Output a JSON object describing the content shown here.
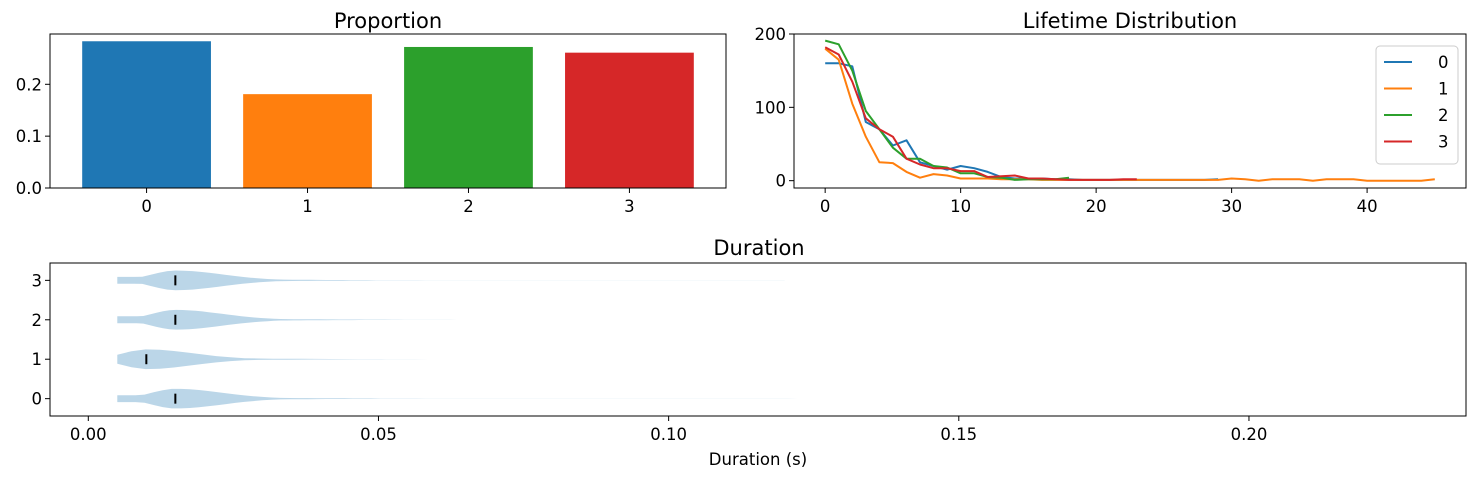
{
  "chart_data": [
    {
      "type": "bar",
      "title": "Proportion",
      "categories": [
        "0",
        "1",
        "2",
        "3"
      ],
      "values": [
        0.283,
        0.181,
        0.272,
        0.261
      ],
      "colors": [
        "#1f77b4",
        "#ff7f0e",
        "#2ca02c",
        "#d62728"
      ],
      "ylim": [
        0,
        0.297
      ],
      "yticks": [
        0.0,
        0.1,
        0.2
      ],
      "ytick_labels": [
        "0.0",
        "0.1",
        "0.2"
      ]
    },
    {
      "type": "line",
      "title": "Lifetime Distribution",
      "xlim": [
        -2.3,
        47.3
      ],
      "ylim": [
        -10,
        200
      ],
      "xticks": [
        0,
        10,
        20,
        30,
        40
      ],
      "xtick_labels": [
        "0",
        "10",
        "20",
        "30",
        "40"
      ],
      "yticks": [
        0,
        100,
        200
      ],
      "ytick_labels": [
        "0",
        "100",
        "200"
      ],
      "legend": "top-right",
      "series": [
        {
          "name": "0",
          "color": "#1f77b4",
          "x": [
            0,
            1,
            2,
            3,
            4,
            5,
            6,
            7,
            8,
            9,
            10,
            11,
            12,
            13,
            14,
            15,
            16,
            17,
            18,
            19,
            20,
            21,
            22,
            23,
            24,
            25,
            26,
            27,
            28,
            29
          ],
          "y": [
            160,
            160,
            156,
            80,
            70,
            48,
            55,
            25,
            20,
            15,
            20,
            17,
            12,
            5,
            3,
            3,
            3,
            2,
            2,
            1,
            1,
            1,
            1,
            1,
            1,
            1,
            1,
            1,
            1,
            2
          ]
        },
        {
          "name": "1",
          "color": "#ff7f0e",
          "x": [
            0,
            1,
            2,
            3,
            4,
            5,
            6,
            7,
            8,
            9,
            10,
            11,
            12,
            13,
            14,
            15,
            16,
            17,
            18,
            19,
            20,
            21,
            22,
            23,
            24,
            25,
            26,
            27,
            28,
            29,
            30,
            31,
            32,
            33,
            34,
            35,
            36,
            37,
            38,
            39,
            40,
            41,
            42,
            43,
            44,
            45
          ],
          "y": [
            180,
            165,
            105,
            60,
            25,
            24,
            12,
            4,
            9,
            7,
            3,
            3,
            3,
            2,
            2,
            2,
            1,
            1,
            1,
            1,
            1,
            1,
            1,
            1,
            1,
            1,
            1,
            1,
            1,
            1,
            3,
            2,
            0,
            2,
            2,
            2,
            0,
            2,
            2,
            2,
            0,
            0,
            0,
            0,
            0,
            2
          ]
        },
        {
          "name": "2",
          "color": "#2ca02c",
          "x": [
            0,
            1,
            2,
            3,
            4,
            5,
            6,
            7,
            8,
            9,
            10,
            11,
            12,
            13,
            14,
            15,
            16,
            17,
            18
          ],
          "y": [
            191,
            186,
            150,
            95,
            70,
            45,
            30,
            30,
            20,
            18,
            10,
            10,
            5,
            4,
            1,
            2,
            2,
            2,
            4
          ]
        },
        {
          "name": "3",
          "color": "#d62728",
          "x": [
            0,
            1,
            2,
            3,
            4,
            5,
            6,
            7,
            8,
            9,
            10,
            11,
            12,
            13,
            14,
            15,
            16,
            17,
            18,
            19,
            20,
            21,
            22,
            23
          ],
          "y": [
            182,
            172,
            135,
            85,
            70,
            60,
            30,
            22,
            17,
            17,
            13,
            13,
            5,
            6,
            7,
            3,
            3,
            2,
            1,
            1,
            1,
            1,
            2,
            2
          ]
        }
      ]
    },
    {
      "type": "violin",
      "title": "Duration",
      "xlabel": "Duration (s)",
      "categories": [
        "0",
        "1",
        "2",
        "3"
      ],
      "xlim": [
        -0.0066,
        0.2374
      ],
      "xticks": [
        0.0,
        0.05,
        0.1,
        0.15,
        0.2
      ],
      "xtick_labels": [
        "0.00",
        "0.05",
        "0.10",
        "0.15",
        "0.20"
      ],
      "yticks": [
        0,
        1,
        2,
        3
      ],
      "ytick_labels": [
        "0",
        "1",
        "2",
        "3"
      ],
      "fill_color": "#1f77b4",
      "medians": [
        0.015,
        0.01,
        0.015,
        0.015
      ],
      "min_values": [
        0.005,
        0.005,
        0.005,
        0.005
      ],
      "max_values": [
        0.13,
        0.2,
        0.095,
        0.12
      ]
    }
  ]
}
